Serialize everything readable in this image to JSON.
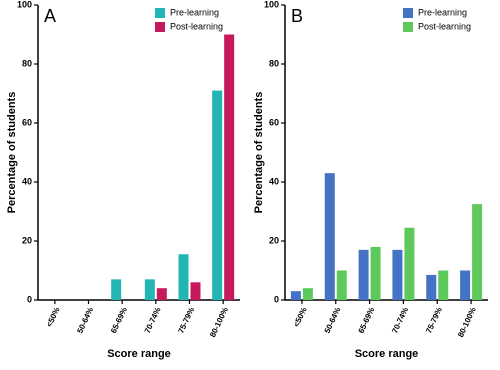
{
  "chart_data": [
    {
      "type": "bar",
      "title": "A",
      "x_label": "Score range",
      "y_label": "Percentage of students",
      "categories": [
        "<50%",
        "50-64%",
        "65-69%",
        "70-74%",
        "75-79%",
        "80-100%"
      ],
      "series": [
        {
          "name": "Pre-learning",
          "color": "#22b5b3",
          "values": [
            0,
            0,
            7,
            7,
            15.5,
            71
          ]
        },
        {
          "name": "Post-learning",
          "color": "#c8195c",
          "values": [
            0,
            0,
            0,
            4,
            6,
            90
          ]
        }
      ],
      "ylim": [
        0,
        100
      ],
      "yticks": [
        0,
        20,
        40,
        60,
        80,
        100
      ],
      "legend": "top-right"
    },
    {
      "type": "bar",
      "title": "B",
      "x_label": "Score range",
      "y_label": "Percentage of students",
      "categories": [
        "<50%",
        "50-64%",
        "65-69%",
        "70-74%",
        "75-79%",
        "80-100%"
      ],
      "series": [
        {
          "name": "Pre-learning",
          "color": "#4472c4",
          "values": [
            3,
            43,
            17,
            17,
            8.5,
            10
          ]
        },
        {
          "name": "Post-learning",
          "color": "#5ec95b",
          "values": [
            4,
            10,
            18,
            24.5,
            10,
            32.5
          ]
        }
      ],
      "ylim": [
        0,
        100
      ],
      "yticks": [
        0,
        20,
        40,
        60,
        80,
        100
      ],
      "legend": "top-right"
    }
  ]
}
